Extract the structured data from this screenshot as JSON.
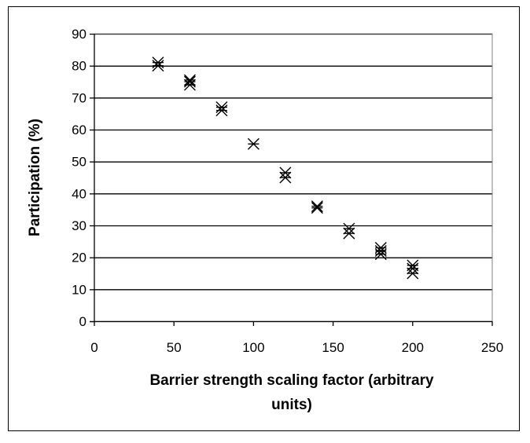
{
  "chart_data": {
    "type": "scatter",
    "title": "",
    "xlabel": "Barrier strength scaling factor (arbitrary units)",
    "xlabel_lines": [
      "Barrier strength scaling factor (arbitrary",
      "units)"
    ],
    "ylabel": "Participation (%)",
    "xlim": [
      0,
      250
    ],
    "ylim": [
      0,
      90
    ],
    "x_ticks": [
      0,
      50,
      100,
      150,
      200,
      250
    ],
    "y_ticks": [
      0,
      10,
      20,
      30,
      40,
      50,
      60,
      70,
      80,
      90
    ],
    "grid": "horizontal",
    "legend": "none",
    "marker": "x-star",
    "series": [
      {
        "x": [
          40,
          40,
          60,
          60,
          60,
          80,
          80,
          100,
          120,
          120,
          140,
          140,
          160,
          160,
          180,
          180,
          180,
          200,
          200,
          200
        ],
        "y": [
          80,
          81,
          74,
          75,
          75.5,
          66,
          67,
          55.5,
          45,
          46.5,
          35.5,
          36,
          27.5,
          29,
          21,
          22,
          23,
          15,
          16.5,
          17.5
        ]
      }
    ]
  },
  "colors": {
    "marker": "#000000",
    "gridline": "#000000",
    "plot_border": "#808080",
    "background": "#ffffff"
  }
}
